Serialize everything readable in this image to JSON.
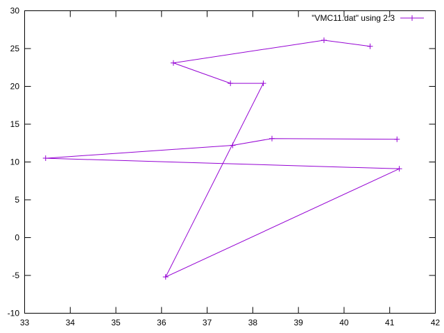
{
  "chart_data": {
    "type": "line",
    "title": "",
    "xlabel": "",
    "ylabel": "",
    "xlim": [
      33,
      42
    ],
    "ylim": [
      -10,
      30
    ],
    "x_ticks": [
      "33",
      "34",
      "35",
      "36",
      "37",
      "38",
      "39",
      "40",
      "41",
      "42"
    ],
    "y_ticks": [
      "-10",
      "-5",
      "0",
      "5",
      "10",
      "15",
      "20",
      "25",
      "30"
    ],
    "grid": false,
    "legend_position": "top-right",
    "series": [
      {
        "name": "\"VMC11.dat\" using 2:3",
        "color": "#9400d3",
        "marker": "plus",
        "x": [
          40.57,
          39.56,
          36.26,
          37.51,
          38.23,
          36.09,
          41.21,
          33.46,
          37.56,
          38.42,
          41.16
        ],
        "y": [
          25.3,
          26.1,
          23.1,
          20.4,
          20.4,
          -5.2,
          9.1,
          10.5,
          12.2,
          13.1,
          13.0
        ]
      }
    ]
  }
}
